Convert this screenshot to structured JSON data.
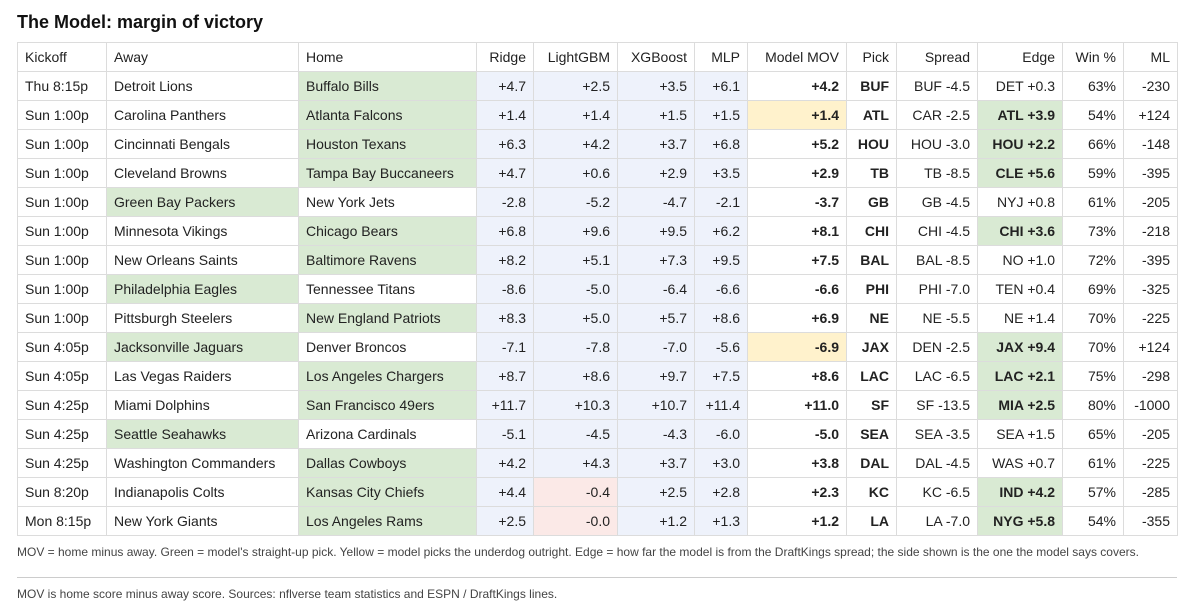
{
  "title": "The Model: margin of victory",
  "headers": {
    "kickoff": "Kickoff",
    "away": "Away",
    "home": "Home",
    "ridge": "Ridge",
    "lightgbm": "LightGBM",
    "xgboost": "XGBoost",
    "mlp": "MLP",
    "mov": "Model MOV",
    "pick": "Pick",
    "spread": "Spread",
    "edge": "Edge",
    "win": "Win %",
    "ml": "ML"
  },
  "colors": {
    "pick_green": "#d9ead3",
    "underdog_yellow": "#fff2cc",
    "negative_pink": "#fbe9e7",
    "model_blue": "#eef2fb"
  },
  "rows": [
    {
      "kickoff": "Thu 8:15p",
      "away": "Detroit Lions",
      "home": "Buffalo Bills",
      "ridge": "+4.7",
      "lightgbm": "+2.5",
      "xgboost": "+3.5",
      "mlp": "+6.1",
      "mov": "+4.2",
      "pick": "BUF",
      "spread": "BUF -4.5",
      "edge": "DET +0.3",
      "win": "63%",
      "ml": "-230",
      "pick_side": "home",
      "underdog": false,
      "edge_hl": false,
      "neg_lgbm": false
    },
    {
      "kickoff": "Sun 1:00p",
      "away": "Carolina Panthers",
      "home": "Atlanta Falcons",
      "ridge": "+1.4",
      "lightgbm": "+1.4",
      "xgboost": "+1.5",
      "mlp": "+1.5",
      "mov": "+1.4",
      "pick": "ATL",
      "spread": "CAR -2.5",
      "edge": "ATL +3.9",
      "win": "54%",
      "ml": "+124",
      "pick_side": "home",
      "underdog": true,
      "edge_hl": true,
      "neg_lgbm": false
    },
    {
      "kickoff": "Sun 1:00p",
      "away": "Cincinnati Bengals",
      "home": "Houston Texans",
      "ridge": "+6.3",
      "lightgbm": "+4.2",
      "xgboost": "+3.7",
      "mlp": "+6.8",
      "mov": "+5.2",
      "pick": "HOU",
      "spread": "HOU -3.0",
      "edge": "HOU +2.2",
      "win": "66%",
      "ml": "-148",
      "pick_side": "home",
      "underdog": false,
      "edge_hl": true,
      "neg_lgbm": false
    },
    {
      "kickoff": "Sun 1:00p",
      "away": "Cleveland Browns",
      "home": "Tampa Bay Buccaneers",
      "ridge": "+4.7",
      "lightgbm": "+0.6",
      "xgboost": "+2.9",
      "mlp": "+3.5",
      "mov": "+2.9",
      "pick": "TB",
      "spread": "TB -8.5",
      "edge": "CLE +5.6",
      "win": "59%",
      "ml": "-395",
      "pick_side": "home",
      "underdog": false,
      "edge_hl": true,
      "neg_lgbm": false
    },
    {
      "kickoff": "Sun 1:00p",
      "away": "Green Bay Packers",
      "home": "New York Jets",
      "ridge": "-2.8",
      "lightgbm": "-5.2",
      "xgboost": "-4.7",
      "mlp": "-2.1",
      "mov": "-3.7",
      "pick": "GB",
      "spread": "GB -4.5",
      "edge": "NYJ +0.8",
      "win": "61%",
      "ml": "-205",
      "pick_side": "away",
      "underdog": false,
      "edge_hl": false,
      "neg_lgbm": false
    },
    {
      "kickoff": "Sun 1:00p",
      "away": "Minnesota Vikings",
      "home": "Chicago Bears",
      "ridge": "+6.8",
      "lightgbm": "+9.6",
      "xgboost": "+9.5",
      "mlp": "+6.2",
      "mov": "+8.1",
      "pick": "CHI",
      "spread": "CHI -4.5",
      "edge": "CHI +3.6",
      "win": "73%",
      "ml": "-218",
      "pick_side": "home",
      "underdog": false,
      "edge_hl": true,
      "neg_lgbm": false
    },
    {
      "kickoff": "Sun 1:00p",
      "away": "New Orleans Saints",
      "home": "Baltimore Ravens",
      "ridge": "+8.2",
      "lightgbm": "+5.1",
      "xgboost": "+7.3",
      "mlp": "+9.5",
      "mov": "+7.5",
      "pick": "BAL",
      "spread": "BAL -8.5",
      "edge": "NO +1.0",
      "win": "72%",
      "ml": "-395",
      "pick_side": "home",
      "underdog": false,
      "edge_hl": false,
      "neg_lgbm": false
    },
    {
      "kickoff": "Sun 1:00p",
      "away": "Philadelphia Eagles",
      "home": "Tennessee Titans",
      "ridge": "-8.6",
      "lightgbm": "-5.0",
      "xgboost": "-6.4",
      "mlp": "-6.6",
      "mov": "-6.6",
      "pick": "PHI",
      "spread": "PHI -7.0",
      "edge": "TEN +0.4",
      "win": "69%",
      "ml": "-325",
      "pick_side": "away",
      "underdog": false,
      "edge_hl": false,
      "neg_lgbm": false
    },
    {
      "kickoff": "Sun 1:00p",
      "away": "Pittsburgh Steelers",
      "home": "New England Patriots",
      "ridge": "+8.3",
      "lightgbm": "+5.0",
      "xgboost": "+5.7",
      "mlp": "+8.6",
      "mov": "+6.9",
      "pick": "NE",
      "spread": "NE -5.5",
      "edge": "NE +1.4",
      "win": "70%",
      "ml": "-225",
      "pick_side": "home",
      "underdog": false,
      "edge_hl": false,
      "neg_lgbm": false
    },
    {
      "kickoff": "Sun 4:05p",
      "away": "Jacksonville Jaguars",
      "home": "Denver Broncos",
      "ridge": "-7.1",
      "lightgbm": "-7.8",
      "xgboost": "-7.0",
      "mlp": "-5.6",
      "mov": "-6.9",
      "pick": "JAX",
      "spread": "DEN -2.5",
      "edge": "JAX +9.4",
      "win": "70%",
      "ml": "+124",
      "pick_side": "away",
      "underdog": true,
      "edge_hl": true,
      "neg_lgbm": false
    },
    {
      "kickoff": "Sun 4:05p",
      "away": "Las Vegas Raiders",
      "home": "Los Angeles Chargers",
      "ridge": "+8.7",
      "lightgbm": "+8.6",
      "xgboost": "+9.7",
      "mlp": "+7.5",
      "mov": "+8.6",
      "pick": "LAC",
      "spread": "LAC -6.5",
      "edge": "LAC +2.1",
      "win": "75%",
      "ml": "-298",
      "pick_side": "home",
      "underdog": false,
      "edge_hl": true,
      "neg_lgbm": false
    },
    {
      "kickoff": "Sun 4:25p",
      "away": "Miami Dolphins",
      "home": "San Francisco 49ers",
      "ridge": "+11.7",
      "lightgbm": "+10.3",
      "xgboost": "+10.7",
      "mlp": "+11.4",
      "mov": "+11.0",
      "pick": "SF",
      "spread": "SF -13.5",
      "edge": "MIA +2.5",
      "win": "80%",
      "ml": "-1000",
      "pick_side": "home",
      "underdog": false,
      "edge_hl": true,
      "neg_lgbm": false
    },
    {
      "kickoff": "Sun 4:25p",
      "away": "Seattle Seahawks",
      "home": "Arizona Cardinals",
      "ridge": "-5.1",
      "lightgbm": "-4.5",
      "xgboost": "-4.3",
      "mlp": "-6.0",
      "mov": "-5.0",
      "pick": "SEA",
      "spread": "SEA -3.5",
      "edge": "SEA +1.5",
      "win": "65%",
      "ml": "-205",
      "pick_side": "away",
      "underdog": false,
      "edge_hl": false,
      "neg_lgbm": false
    },
    {
      "kickoff": "Sun 4:25p",
      "away": "Washington Commanders",
      "home": "Dallas Cowboys",
      "ridge": "+4.2",
      "lightgbm": "+4.3",
      "xgboost": "+3.7",
      "mlp": "+3.0",
      "mov": "+3.8",
      "pick": "DAL",
      "spread": "DAL -4.5",
      "edge": "WAS +0.7",
      "win": "61%",
      "ml": "-225",
      "pick_side": "home",
      "underdog": false,
      "edge_hl": false,
      "neg_lgbm": false
    },
    {
      "kickoff": "Sun 8:20p",
      "away": "Indianapolis Colts",
      "home": "Kansas City Chiefs",
      "ridge": "+4.4",
      "lightgbm": "-0.4",
      "xgboost": "+2.5",
      "mlp": "+2.8",
      "mov": "+2.3",
      "pick": "KC",
      "spread": "KC -6.5",
      "edge": "IND +4.2",
      "win": "57%",
      "ml": "-285",
      "pick_side": "home",
      "underdog": false,
      "edge_hl": true,
      "neg_lgbm": true
    },
    {
      "kickoff": "Mon 8:15p",
      "away": "New York Giants",
      "home": "Los Angeles Rams",
      "ridge": "+2.5",
      "lightgbm": "-0.0",
      "xgboost": "+1.2",
      "mlp": "+1.3",
      "mov": "+1.2",
      "pick": "LA",
      "spread": "LA -7.0",
      "edge": "NYG +5.8",
      "win": "54%",
      "ml": "-355",
      "pick_side": "home",
      "underdog": false,
      "edge_hl": true,
      "neg_lgbm": true
    }
  ],
  "legend_note": "MOV = home minus away. Green = model's straight-up pick. Yellow = model picks the underdog outright. Edge = how far the model is from the DraftKings spread; the side shown is the one the model says covers.",
  "source_note": "MOV is home score minus away score. Sources: nflverse team statistics and ESPN / DraftKings lines."
}
